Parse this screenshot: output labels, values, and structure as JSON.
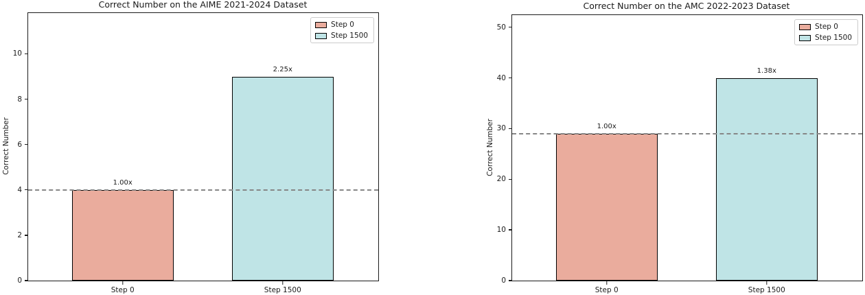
{
  "chart_data": [
    {
      "type": "bar",
      "title": "Correct Number on the AIME 2021-2024 Dataset",
      "xlabel": "",
      "ylabel": "Correct Number",
      "categories": [
        "Step 0",
        "Step 1500"
      ],
      "values": [
        4,
        9
      ],
      "bar_labels": [
        "1.00x",
        "2.25x"
      ],
      "bar_colors": [
        "#EAAC9D",
        "#BFE4E6"
      ],
      "legend": [
        "Step 0",
        "Step 1500"
      ],
      "legend_position": "upper right",
      "yticks": [
        0,
        2,
        4,
        6,
        8,
        10
      ],
      "ylim": [
        0,
        11.8
      ],
      "baseline_value": 4,
      "baseline_style": "dashed gray",
      "grid": false
    },
    {
      "type": "bar",
      "title": "Correct Number on the AMC 2022-2023 Dataset",
      "xlabel": "",
      "ylabel": "Correct Number",
      "categories": [
        "Step 0",
        "Step 1500"
      ],
      "values": [
        29,
        40
      ],
      "bar_labels": [
        "1.00x",
        "1.38x"
      ],
      "bar_colors": [
        "#EAAC9D",
        "#BFE4E6"
      ],
      "legend": [
        "Step 0",
        "Step 1500"
      ],
      "legend_position": "upper right",
      "yticks": [
        0,
        10,
        20,
        30,
        40,
        50
      ],
      "ylim": [
        0,
        52.4
      ],
      "baseline_value": 29,
      "baseline_style": "dashed gray",
      "grid": false
    }
  ]
}
